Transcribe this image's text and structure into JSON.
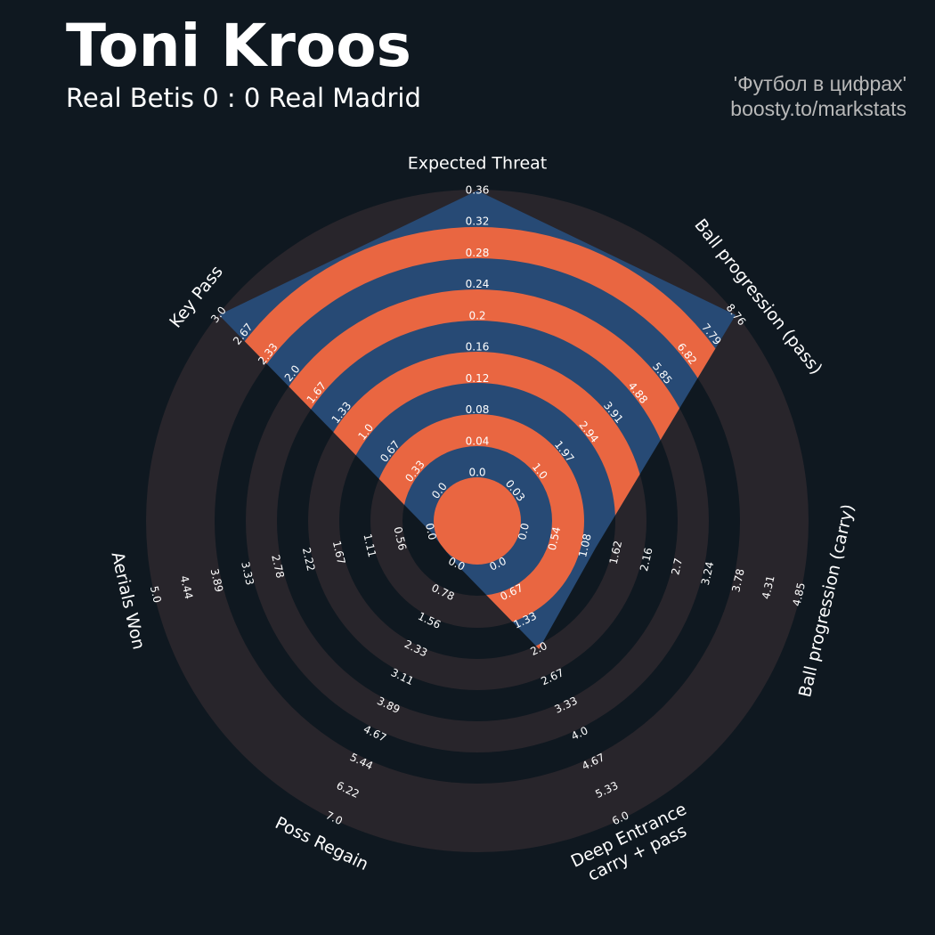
{
  "chart_data": {
    "type": "radar",
    "title": "Toni Kroos",
    "subtitle": "Real Betis 0 : 0 Real Madrid",
    "credits": [
      "'Футбол в цифрах'",
      "boosty.to/markstats"
    ],
    "color": "#274a75",
    "ring_color": "#28252b",
    "highlight_color": "#e96641",
    "axes": [
      {
        "label": "Expected Threat",
        "ticks": [
          {
            "value": 0,
            "label": "0.0"
          },
          0.04,
          0.08,
          0.12,
          0.16,
          0.2,
          0.24,
          0.28,
          0.32,
          0.36
        ]
      },
      {
        "label": "Ball progression (pass)",
        "ticks": [
          0.03,
          {
            "value": 1,
            "label": "1.0"
          },
          1.97,
          2.94,
          3.91,
          4.88,
          5.85,
          6.82,
          7.79,
          8.76
        ]
      },
      {
        "label": "Ball progression (carry)",
        "ticks": [
          {
            "value": 0,
            "label": "0.0"
          },
          0.54,
          1.08,
          1.62,
          2.16,
          2.7,
          3.24,
          3.78,
          4.31,
          4.85
        ]
      },
      {
        "label": [
          "Deep Entrance",
          "carry + pass"
        ],
        "ticks": [
          {
            "value": 0,
            "label": "0.0"
          },
          0.67,
          1.33,
          {
            "value": 2,
            "label": "2.0"
          },
          2.67,
          3.33,
          {
            "value": 4,
            "label": "4.0"
          },
          4.67,
          5.33,
          {
            "value": 6,
            "label": "6.0"
          }
        ]
      },
      {
        "label": "Poss Regain",
        "ticks": [
          {
            "value": 0,
            "label": "0.0"
          },
          0.78,
          1.56,
          2.33,
          3.11,
          3.89,
          4.67,
          5.44,
          6.22,
          {
            "value": 7,
            "label": "7.0"
          }
        ]
      },
      {
        "label": "Aerials Won",
        "ticks": [
          {
            "value": 0,
            "label": "0.0"
          },
          0.56,
          1.11,
          1.67,
          2.22,
          2.78,
          3.33,
          3.89,
          4.44,
          {
            "value": 5,
            "label": "5.0"
          }
        ]
      },
      {
        "label": "Key Pass",
        "ticks": [
          {
            "value": 0,
            "label": "0.0"
          },
          0.33,
          0.67,
          {
            "value": 1,
            "label": "1.0"
          },
          1.33,
          1.67,
          {
            "value": 2,
            "label": "2.0"
          },
          2.33,
          2.67,
          {
            "value": 3,
            "label": "3.0"
          }
        ]
      }
    ],
    "values": [
      0.36,
      8.76,
      1.26,
      2.0,
      0,
      0,
      3.0
    ]
  }
}
